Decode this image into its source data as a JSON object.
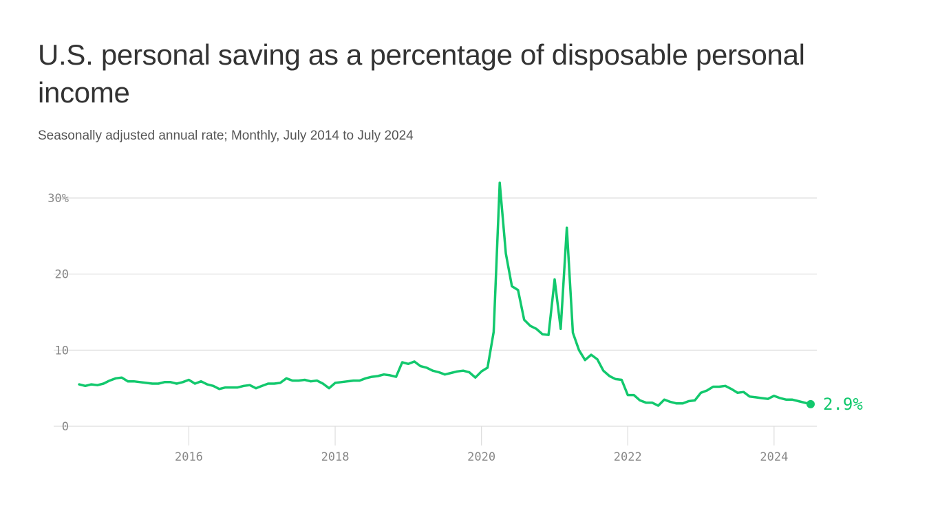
{
  "title": "U.S. personal saving as a percentage of disposable personal income",
  "subtitle": "Seasonally adjusted annual rate; Monthly, July 2014 to July 2024",
  "colors": {
    "line": "#12c86d",
    "grid": "#dddddd",
    "axis_text": "#888888",
    "title": "#333333"
  },
  "chart_data": {
    "type": "line",
    "xlabel": "",
    "ylabel": "",
    "x_start": "2014-07",
    "x_end": "2024-07",
    "xlim": [
      "2014-07",
      "2024-07"
    ],
    "ylim": [
      0,
      32
    ],
    "y_ticks": [
      {
        "value": 0,
        "label": "0"
      },
      {
        "value": 10,
        "label": "10"
      },
      {
        "value": 20,
        "label": "20"
      },
      {
        "value": 30,
        "label": "30%"
      }
    ],
    "x_ticks": [
      {
        "value": "2016-01",
        "label": "2016"
      },
      {
        "value": "2018-01",
        "label": "2018"
      },
      {
        "value": "2020-01",
        "label": "2020"
      },
      {
        "value": "2022-01",
        "label": "2022"
      },
      {
        "value": "2024-01",
        "label": "2024"
      }
    ],
    "grid": true,
    "end_label": "2.9%",
    "series": [
      {
        "dates": [
          "2014-07",
          "2014-08",
          "2014-09",
          "2014-10",
          "2014-11",
          "2014-12",
          "2015-01",
          "2015-02",
          "2015-03",
          "2015-04",
          "2015-05",
          "2015-06",
          "2015-07",
          "2015-08",
          "2015-09",
          "2015-10",
          "2015-11",
          "2015-12",
          "2016-01",
          "2016-02",
          "2016-03",
          "2016-04",
          "2016-05",
          "2016-06",
          "2016-07",
          "2016-08",
          "2016-09",
          "2016-10",
          "2016-11",
          "2016-12",
          "2017-01",
          "2017-02",
          "2017-03",
          "2017-04",
          "2017-05",
          "2017-06",
          "2017-07",
          "2017-08",
          "2017-09",
          "2017-10",
          "2017-11",
          "2017-12",
          "2018-01",
          "2018-02",
          "2018-03",
          "2018-04",
          "2018-05",
          "2018-06",
          "2018-07",
          "2018-08",
          "2018-09",
          "2018-10",
          "2018-11",
          "2018-12",
          "2019-01",
          "2019-02",
          "2019-03",
          "2019-04",
          "2019-05",
          "2019-06",
          "2019-07",
          "2019-08",
          "2019-09",
          "2019-10",
          "2019-11",
          "2019-12",
          "2020-01",
          "2020-02",
          "2020-03",
          "2020-04",
          "2020-05",
          "2020-06",
          "2020-07",
          "2020-08",
          "2020-09",
          "2020-10",
          "2020-11",
          "2020-12",
          "2021-01",
          "2021-02",
          "2021-03",
          "2021-04",
          "2021-05",
          "2021-06",
          "2021-07",
          "2021-08",
          "2021-09",
          "2021-10",
          "2021-11",
          "2021-12",
          "2022-01",
          "2022-02",
          "2022-03",
          "2022-04",
          "2022-05",
          "2022-06",
          "2022-07",
          "2022-08",
          "2022-09",
          "2022-10",
          "2022-11",
          "2022-12",
          "2023-01",
          "2023-02",
          "2023-03",
          "2023-04",
          "2023-05",
          "2023-06",
          "2023-07",
          "2023-08",
          "2023-09",
          "2023-10",
          "2023-11",
          "2023-12",
          "2024-01",
          "2024-02",
          "2024-03",
          "2024-04",
          "2024-05",
          "2024-06",
          "2024-07"
        ],
        "values": [
          5.5,
          5.3,
          5.5,
          5.4,
          5.6,
          6.0,
          6.3,
          6.4,
          5.9,
          5.9,
          5.8,
          5.7,
          5.6,
          5.6,
          5.8,
          5.8,
          5.6,
          5.8,
          6.1,
          5.6,
          5.9,
          5.5,
          5.3,
          4.9,
          5.1,
          5.1,
          5.1,
          5.3,
          5.4,
          5.0,
          5.3,
          5.6,
          5.6,
          5.7,
          6.3,
          6.0,
          6.0,
          6.1,
          5.9,
          6.0,
          5.6,
          5.0,
          5.7,
          5.8,
          5.9,
          6.0,
          6.0,
          6.3,
          6.5,
          6.6,
          6.8,
          6.7,
          6.5,
          8.4,
          8.2,
          8.5,
          7.9,
          7.7,
          7.3,
          7.1,
          6.8,
          7.0,
          7.2,
          7.3,
          7.1,
          6.4,
          7.2,
          7.7,
          12.4,
          32.0,
          22.7,
          18.4,
          17.9,
          14.0,
          13.2,
          12.8,
          12.1,
          12.0,
          19.3,
          12.8,
          26.1,
          12.3,
          10.0,
          8.7,
          9.4,
          8.8,
          7.3,
          6.6,
          6.2,
          6.1,
          4.1,
          4.1,
          3.4,
          3.1,
          3.1,
          2.7,
          3.5,
          3.2,
          3.0,
          3.0,
          3.3,
          3.4,
          4.4,
          4.7,
          5.2,
          5.2,
          5.3,
          4.9,
          4.4,
          4.5,
          3.9,
          3.8,
          3.7,
          3.6,
          4.0,
          3.7,
          3.5,
          3.5,
          3.3,
          3.1,
          2.9
        ]
      }
    ]
  }
}
